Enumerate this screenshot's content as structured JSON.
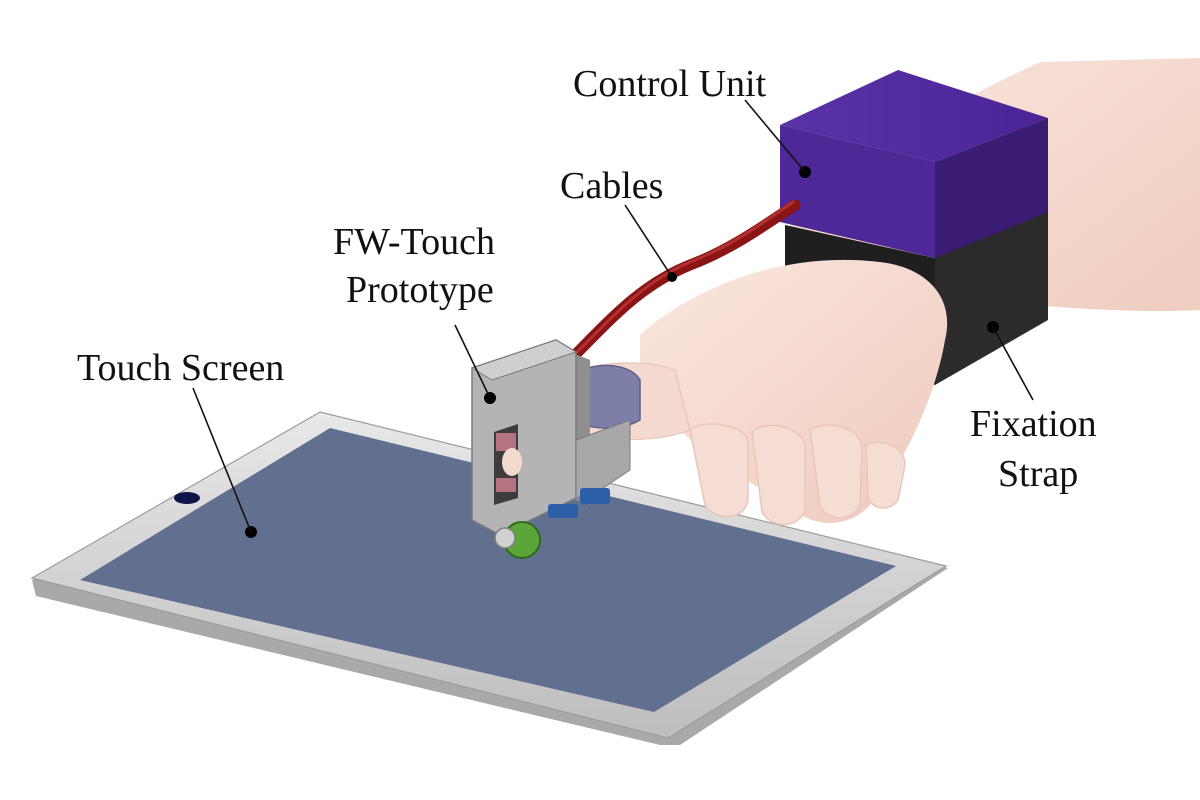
{
  "labels": {
    "control_unit": "Control Unit",
    "cables": "Cables",
    "prototype_line1": "FW-Touch",
    "prototype_line2": "Prototype",
    "touch_screen": "Touch Screen",
    "fixation_line1": "Fixation",
    "fixation_line2": "Strap"
  },
  "colors": {
    "control_unit": "#4b2593",
    "fixation_strap": "#2b2b2b",
    "cable": "#8b1414",
    "screen": "#62708f",
    "tablet_frame": "#d6d6d6",
    "device_body": "#b4b4b4",
    "hand": "#f3d6cb"
  }
}
